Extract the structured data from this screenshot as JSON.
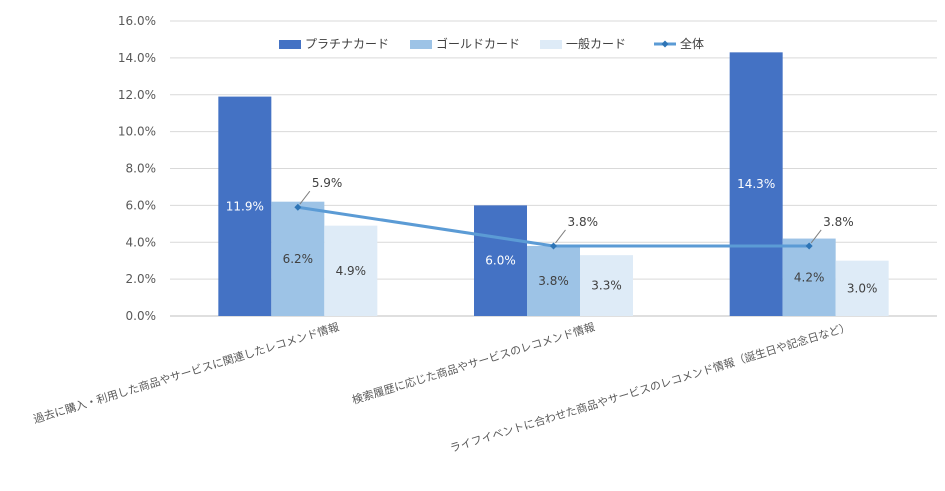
{
  "chart_data": {
    "type": "bar",
    "categories": [
      "過去に購入・利用した商品やサービスに関連したレコメンド情報",
      "検索履歴に応じた商品やサービスのレコメンド情報",
      "ライフイベントに合わせた商品やサービスのレコメンド情報（誕生日や記念日など）"
    ],
    "series": [
      {
        "name": "プラチナカード",
        "type": "bar",
        "color": "#4472c4",
        "values": [
          11.9,
          6.0,
          14.3
        ],
        "labels": [
          "11.9%",
          "6.0%",
          "14.3%"
        ]
      },
      {
        "name": "ゴールドカード",
        "type": "bar",
        "color": "#9dc3e6",
        "values": [
          6.2,
          3.8,
          4.2
        ],
        "labels": [
          "6.2%",
          "3.8%",
          "4.2%"
        ]
      },
      {
        "name": "一般カード",
        "type": "bar",
        "color": "#deebf7",
        "values": [
          4.9,
          3.3,
          3.0
        ],
        "labels": [
          "4.9%",
          "3.3%",
          "3.0%"
        ]
      },
      {
        "name": "全体",
        "type": "line",
        "color": "#5b9bd5",
        "values": [
          5.9,
          3.8,
          3.8
        ],
        "labels": [
          "5.9%",
          "3.8%",
          "3.8%"
        ]
      }
    ],
    "yticks": [
      "0.0%",
      "2.0%",
      "4.0%",
      "6.0%",
      "8.0%",
      "10.0%",
      "12.0%",
      "14.0%",
      "16.0%"
    ],
    "ylim": [
      0,
      16
    ],
    "grid": true,
    "legend": "top"
  }
}
